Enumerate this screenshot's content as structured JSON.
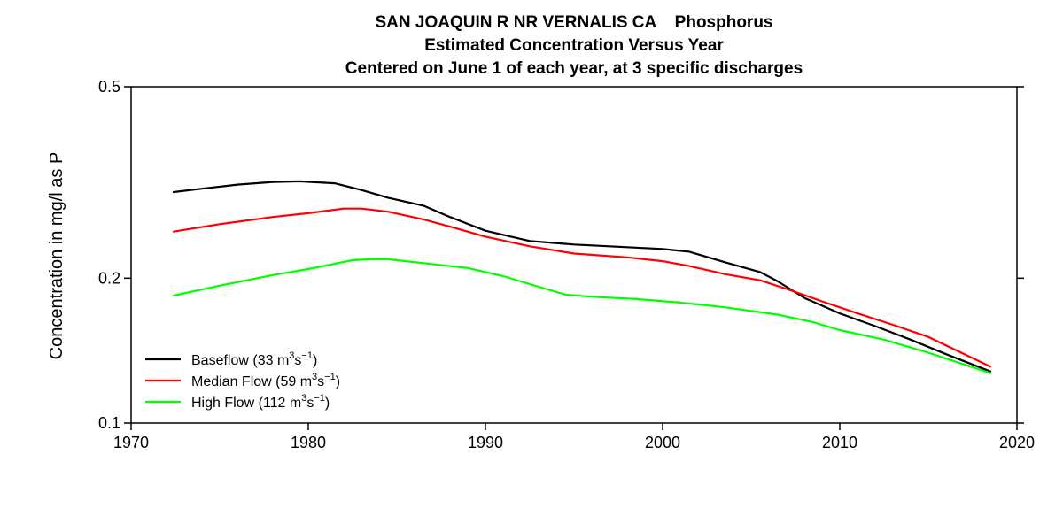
{
  "chart_data": {
    "type": "line",
    "title_lines": [
      "SAN JOAQUIN R NR VERNALIS CA    Phosphorus",
      "Estimated Concentration Versus Year",
      "Centered on June 1 of each year, at 3 specific discharges"
    ],
    "xlabel": "",
    "ylabel": "Concentration in mg/l as P",
    "xlim": [
      1970,
      2020
    ],
    "ylim": [
      0.1,
      0.5
    ],
    "yscale": "log",
    "xticks": [
      1970,
      1980,
      1990,
      2000,
      2010,
      2020
    ],
    "yticks": [
      0.1,
      0.2,
      0.5
    ],
    "grid": false,
    "legend_position": "bottom-left",
    "series": [
      {
        "name": "Baseflow (33 m3s-1)",
        "legend": {
          "pre": "Baseflow (33 m",
          "sup1": "3",
          "mid": "s",
          "sup2": "−1",
          "post": ")"
        },
        "color": "#000000",
        "x": [
          1972.4,
          1974,
          1976,
          1978,
          1979.5,
          1981.5,
          1983,
          1984.5,
          1986.5,
          1988,
          1990,
          1992.5,
          1995,
          1998,
          2000,
          2001.5,
          2003.5,
          2005.5,
          2006.5,
          2008,
          2010,
          2012,
          2014,
          2016,
          2018.5
        ],
        "y": [
          0.302,
          0.307,
          0.313,
          0.317,
          0.318,
          0.315,
          0.305,
          0.294,
          0.283,
          0.268,
          0.251,
          0.239,
          0.235,
          0.232,
          0.23,
          0.227,
          0.216,
          0.206,
          0.197,
          0.182,
          0.169,
          0.159,
          0.149,
          0.139,
          0.128
        ]
      },
      {
        "name": "Median Flow (59 m3s-1)",
        "legend": {
          "pre": "Median Flow (59 m",
          "sup1": "3",
          "mid": "s",
          "sup2": "−1",
          "post": ")"
        },
        "color": "#ff0000",
        "x": [
          1972.4,
          1975,
          1978,
          1980,
          1982,
          1983,
          1984.5,
          1986.5,
          1988,
          1990,
          1992.5,
          1995,
          1998,
          2000,
          2001.5,
          2003.5,
          2005.5,
          2007,
          2009,
          2011,
          2013,
          2015,
          2018.5
        ],
        "y": [
          0.25,
          0.259,
          0.268,
          0.273,
          0.279,
          0.279,
          0.275,
          0.265,
          0.256,
          0.244,
          0.233,
          0.225,
          0.221,
          0.217,
          0.212,
          0.204,
          0.198,
          0.19,
          0.179,
          0.169,
          0.16,
          0.151,
          0.131
        ]
      },
      {
        "name": "High Flow (112 m3s-1)",
        "legend": {
          "pre": "High Flow (112 m",
          "sup1": "3",
          "mid": "s",
          "sup2": "−1",
          "post": ")"
        },
        "color": "#00ff00",
        "x": [
          1972.4,
          1975,
          1978,
          1980,
          1982.5,
          1983.5,
          1984.5,
          1986.5,
          1989,
          1991,
          1993,
          1994.5,
          1996,
          1998.5,
          2001,
          2003.5,
          2006.5,
          2008.5,
          2010,
          2012.5,
          2015,
          2018.5
        ],
        "y": [
          0.184,
          0.193,
          0.203,
          0.209,
          0.218,
          0.219,
          0.219,
          0.215,
          0.21,
          0.202,
          0.192,
          0.185,
          0.183,
          0.181,
          0.178,
          0.174,
          0.168,
          0.162,
          0.156,
          0.149,
          0.14,
          0.127
        ]
      }
    ]
  }
}
